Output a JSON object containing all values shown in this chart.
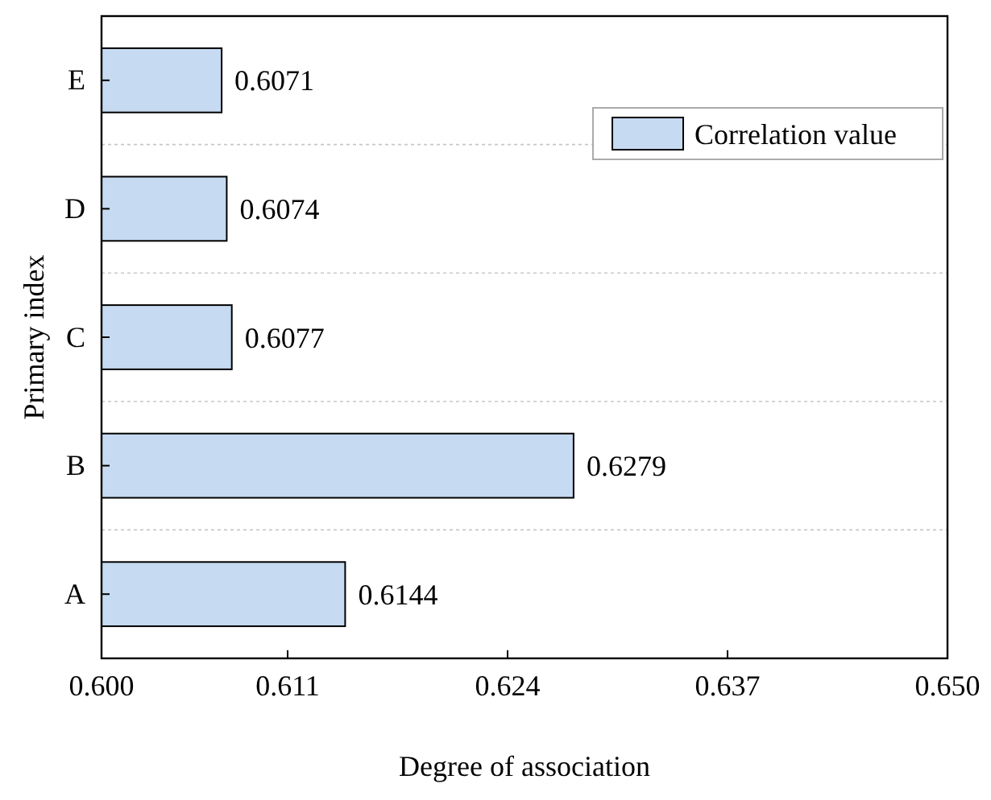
{
  "chart_data": {
    "type": "bar",
    "orientation": "horizontal",
    "xlabel": "Degree of association",
    "ylabel": "Primary index",
    "categories": [
      "E",
      "D",
      "C",
      "B",
      "A"
    ],
    "series": [
      {
        "name": "Correlation value",
        "color": "#c6daf1",
        "values": [
          0.6071,
          0.6074,
          0.6077,
          0.6279,
          0.6144
        ]
      }
    ],
    "xlim": [
      0.6,
      0.65
    ],
    "xticks": [
      {
        "value": 0.6,
        "label": "0.600"
      },
      {
        "value": 0.611,
        "label": "0.611"
      },
      {
        "value": 0.624,
        "label": "0.624"
      },
      {
        "value": 0.637,
        "label": "0.637"
      },
      {
        "value": 0.65,
        "label": "0.650"
      }
    ],
    "data_labels": true,
    "grid": "y",
    "legend": "top right"
  }
}
